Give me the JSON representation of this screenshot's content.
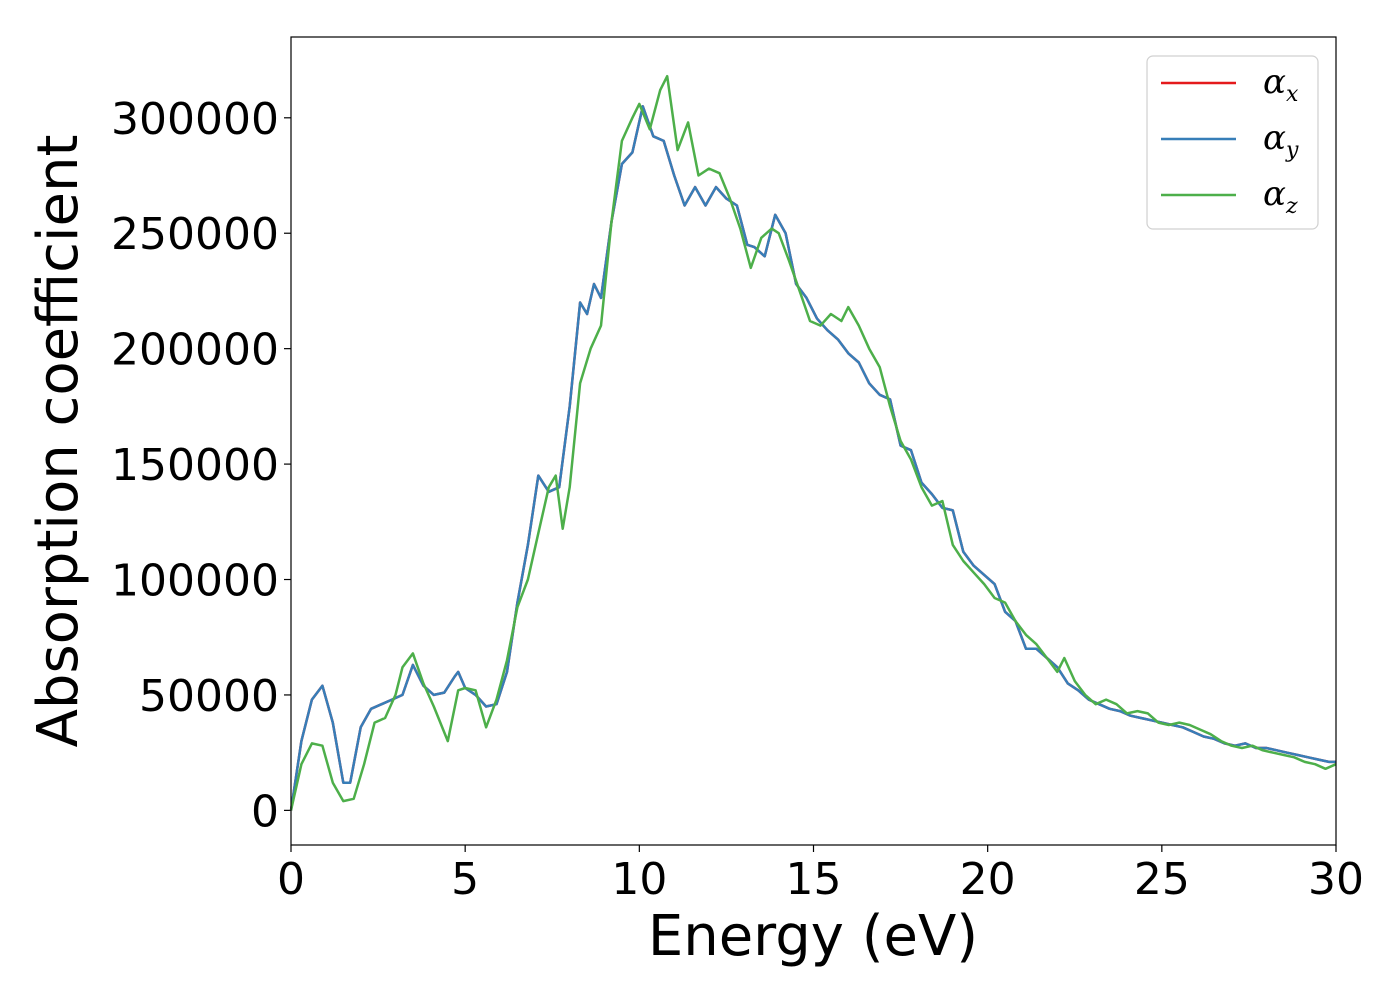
{
  "chart_data": {
    "type": "line",
    "xlabel": "Energy (eV)",
    "ylabel": "Absorption coefficient",
    "xlim": [
      0,
      30
    ],
    "ylim": [
      -15000,
      335000
    ],
    "xticks": [
      0,
      5,
      10,
      15,
      20,
      25,
      30
    ],
    "yticks": [
      0,
      50000,
      100000,
      150000,
      200000,
      250000,
      300000
    ],
    "grid": false,
    "legend_position": "top-right",
    "series": [
      {
        "name": "α_x",
        "symbol": "α",
        "subscript": "x",
        "color": "#e41a1c",
        "x": [
          0,
          0.3,
          0.6,
          0.9,
          1.2,
          1.5,
          1.7,
          2.0,
          2.3,
          2.6,
          2.9,
          3.2,
          3.5,
          3.8,
          4.1,
          4.4,
          4.7,
          4.8,
          5.0,
          5.3,
          5.6,
          5.9,
          6.2,
          6.5,
          6.8,
          7.1,
          7.4,
          7.7,
          8.0,
          8.3,
          8.5,
          8.7,
          8.9,
          9.2,
          9.5,
          9.8,
          10.1,
          10.4,
          10.7,
          11.0,
          11.3,
          11.6,
          11.9,
          12.2,
          12.5,
          12.8,
          13.1,
          13.3,
          13.6,
          13.9,
          14.2,
          14.5,
          14.8,
          15.1,
          15.4,
          15.7,
          16.0,
          16.3,
          16.6,
          16.9,
          17.2,
          17.5,
          17.8,
          18.1,
          18.4,
          18.7,
          19.0,
          19.3,
          19.6,
          19.9,
          20.2,
          20.5,
          20.8,
          21.1,
          21.4,
          21.7,
          22.0,
          22.3,
          22.6,
          22.9,
          23.2,
          23.5,
          23.8,
          24.1,
          24.4,
          24.7,
          25.0,
          25.3,
          25.6,
          25.9,
          26.2,
          26.5,
          26.8,
          27.1,
          27.4,
          27.7,
          28.0,
          28.3,
          28.6,
          28.9,
          29.2,
          29.5,
          29.8,
          30.0
        ],
        "y": [
          0,
          30000,
          48000,
          54000,
          38000,
          12000,
          12000,
          36000,
          44000,
          46000,
          48000,
          50000,
          63000,
          54000,
          50000,
          51000,
          58000,
          60000,
          53000,
          50000,
          45000,
          46000,
          60000,
          90000,
          115000,
          145000,
          138000,
          140000,
          175000,
          220000,
          215000,
          228000,
          222000,
          255000,
          280000,
          285000,
          305000,
          292000,
          290000,
          275000,
          262000,
          270000,
          262000,
          270000,
          265000,
          262000,
          245000,
          244000,
          240000,
          258000,
          250000,
          228000,
          222000,
          213000,
          208000,
          204000,
          198000,
          194000,
          185000,
          180000,
          178000,
          158000,
          156000,
          142000,
          137000,
          131000,
          130000,
          112000,
          106000,
          102000,
          98000,
          86000,
          82000,
          70000,
          70000,
          66000,
          62000,
          55000,
          52000,
          48000,
          46000,
          44000,
          43000,
          41000,
          40000,
          39000,
          38000,
          37000,
          36000,
          34000,
          32000,
          31000,
          29000,
          28000,
          29000,
          27000,
          27000,
          26000,
          25000,
          24000,
          23000,
          22000,
          21000,
          21000
        ]
      },
      {
        "name": "α_y",
        "symbol": "α",
        "subscript": "y",
        "color": "#377eb8",
        "x": [
          0,
          0.3,
          0.6,
          0.9,
          1.2,
          1.5,
          1.7,
          2.0,
          2.3,
          2.6,
          2.9,
          3.2,
          3.5,
          3.8,
          4.1,
          4.4,
          4.7,
          4.8,
          5.0,
          5.3,
          5.6,
          5.9,
          6.2,
          6.5,
          6.8,
          7.1,
          7.4,
          7.7,
          8.0,
          8.3,
          8.5,
          8.7,
          8.9,
          9.2,
          9.5,
          9.8,
          10.1,
          10.4,
          10.7,
          11.0,
          11.3,
          11.6,
          11.9,
          12.2,
          12.5,
          12.8,
          13.1,
          13.3,
          13.6,
          13.9,
          14.2,
          14.5,
          14.8,
          15.1,
          15.4,
          15.7,
          16.0,
          16.3,
          16.6,
          16.9,
          17.2,
          17.5,
          17.8,
          18.1,
          18.4,
          18.7,
          19.0,
          19.3,
          19.6,
          19.9,
          20.2,
          20.5,
          20.8,
          21.1,
          21.4,
          21.7,
          22.0,
          22.3,
          22.6,
          22.9,
          23.2,
          23.5,
          23.8,
          24.1,
          24.4,
          24.7,
          25.0,
          25.3,
          25.6,
          25.9,
          26.2,
          26.5,
          26.8,
          27.1,
          27.4,
          27.7,
          28.0,
          28.3,
          28.6,
          28.9,
          29.2,
          29.5,
          29.8,
          30.0
        ],
        "y": [
          0,
          30000,
          48000,
          54000,
          38000,
          12000,
          12000,
          36000,
          44000,
          46000,
          48000,
          50000,
          63000,
          54000,
          50000,
          51000,
          58000,
          60000,
          53000,
          50000,
          45000,
          46000,
          60000,
          90000,
          115000,
          145000,
          138000,
          140000,
          175000,
          220000,
          215000,
          228000,
          222000,
          255000,
          280000,
          285000,
          305000,
          292000,
          290000,
          275000,
          262000,
          270000,
          262000,
          270000,
          265000,
          262000,
          245000,
          244000,
          240000,
          258000,
          250000,
          228000,
          222000,
          213000,
          208000,
          204000,
          198000,
          194000,
          185000,
          180000,
          178000,
          158000,
          156000,
          142000,
          137000,
          131000,
          130000,
          112000,
          106000,
          102000,
          98000,
          86000,
          82000,
          70000,
          70000,
          66000,
          62000,
          55000,
          52000,
          48000,
          46000,
          44000,
          43000,
          41000,
          40000,
          39000,
          38000,
          37000,
          36000,
          34000,
          32000,
          31000,
          29000,
          28000,
          29000,
          27000,
          27000,
          26000,
          25000,
          24000,
          23000,
          22000,
          21000,
          21000
        ]
      },
      {
        "name": "α_z",
        "symbol": "α",
        "subscript": "z",
        "color": "#4daf4a",
        "x": [
          0,
          0.3,
          0.6,
          0.9,
          1.2,
          1.5,
          1.8,
          2.1,
          2.4,
          2.7,
          3.0,
          3.2,
          3.5,
          3.8,
          4.1,
          4.5,
          4.8,
          5.0,
          5.3,
          5.6,
          5.9,
          6.2,
          6.5,
          6.8,
          7.1,
          7.4,
          7.6,
          7.8,
          8.0,
          8.3,
          8.6,
          8.9,
          9.2,
          9.5,
          9.8,
          10.0,
          10.3,
          10.6,
          10.8,
          11.1,
          11.4,
          11.7,
          12.0,
          12.3,
          12.6,
          12.9,
          13.2,
          13.5,
          13.8,
          14.0,
          14.3,
          14.6,
          14.9,
          15.2,
          15.5,
          15.8,
          16.0,
          16.3,
          16.6,
          16.9,
          17.2,
          17.5,
          17.8,
          18.1,
          18.4,
          18.7,
          19.0,
          19.3,
          19.6,
          19.9,
          20.2,
          20.5,
          20.8,
          21.1,
          21.4,
          21.7,
          22.0,
          22.2,
          22.5,
          22.8,
          23.1,
          23.4,
          23.7,
          24.0,
          24.3,
          24.6,
          24.9,
          25.2,
          25.5,
          25.8,
          26.1,
          26.4,
          26.7,
          27.0,
          27.3,
          27.6,
          27.9,
          28.2,
          28.5,
          28.8,
          29.1,
          29.4,
          29.7,
          30.0
        ],
        "y": [
          0,
          20000,
          29000,
          28000,
          12000,
          4000,
          5000,
          20000,
          38000,
          40000,
          50000,
          62000,
          68000,
          55000,
          45000,
          30000,
          52000,
          53000,
          52000,
          36000,
          48000,
          65000,
          88000,
          100000,
          120000,
          140000,
          145000,
          122000,
          140000,
          185000,
          200000,
          210000,
          255000,
          290000,
          300000,
          306000,
          295000,
          312000,
          318000,
          286000,
          298000,
          275000,
          278000,
          276000,
          265000,
          252000,
          235000,
          248000,
          252000,
          250000,
          238000,
          225000,
          212000,
          210000,
          215000,
          212000,
          218000,
          210000,
          200000,
          192000,
          175000,
          160000,
          152000,
          140000,
          132000,
          134000,
          115000,
          108000,
          103000,
          98000,
          92000,
          90000,
          82000,
          76000,
          72000,
          66000,
          60000,
          66000,
          56000,
          50000,
          46000,
          48000,
          46000,
          42000,
          43000,
          42000,
          38000,
          37000,
          38000,
          37000,
          35000,
          33000,
          30000,
          28000,
          27000,
          28000,
          26000,
          25000,
          24000,
          23000,
          21000,
          20000,
          18000,
          20000
        ]
      }
    ]
  }
}
